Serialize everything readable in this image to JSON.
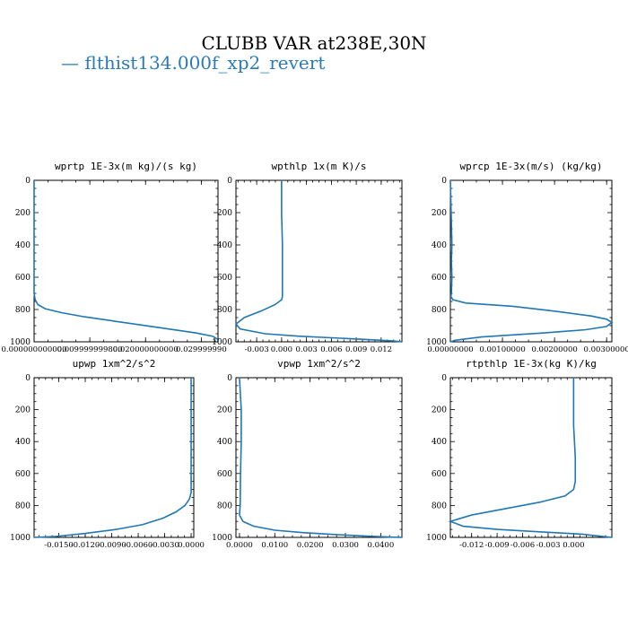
{
  "title": "CLUBB VAR at238E,30N",
  "legend": {
    "label": "— flthist134.000f_xp2_revert",
    "color": "#2a7bb6"
  },
  "line_color": "#1f77b4",
  "chart_data": [
    {
      "type": "line",
      "title": "wprtp  1E-3x(m kg)/(s kg)",
      "xlim": [
        0,
        0.033
      ],
      "ylim": [
        1000,
        0
      ],
      "yticks": [
        "0",
        "200",
        "400",
        "600",
        "800",
        "1000"
      ],
      "xtick_values": [
        0,
        0.01,
        0.02,
        0.03
      ],
      "xtick_labels": [
        "0.000000000000",
        "0.009999999800",
        "0.020000000000",
        "0.029999990"
      ],
      "series": [
        {
          "x": [
            0,
            0,
            0,
            0.0002,
            0.0007,
            0.002,
            0.005,
            0.009,
            0.014,
            0.019,
            0.024,
            0.029,
            0.032,
            0.033,
            0.033
          ],
          "y": [
            0,
            300,
            700,
            740,
            770,
            795,
            820,
            845,
            870,
            895,
            920,
            945,
            965,
            985,
            1000
          ]
        }
      ]
    },
    {
      "type": "line",
      "title": "wpthlp  1x(m K)/s",
      "xlim": [
        -0.0055,
        0.0145
      ],
      "ylim": [
        1000,
        0
      ],
      "yticks": [
        "0",
        "200",
        "400",
        "600",
        "800",
        "1000"
      ],
      "xtick_values": [
        -0.003,
        0,
        0.003,
        0.006,
        0.009,
        0.012
      ],
      "xtick_labels": [
        "-0.003",
        "0.000",
        "0.003",
        "0.006",
        "0.009",
        "0.012"
      ],
      "series": [
        {
          "x": [
            0,
            0,
            0.0001,
            0.0001,
            0.0001,
            0,
            -0.0008,
            -0.0025,
            -0.0045,
            -0.0055,
            -0.005,
            -0.002,
            0.002,
            0.006,
            0.01,
            0.0135,
            0.0145
          ],
          "y": [
            0,
            200,
            400,
            600,
            720,
            740,
            770,
            810,
            850,
            890,
            920,
            950,
            965,
            975,
            985,
            995,
            1000
          ]
        }
      ]
    },
    {
      "type": "line",
      "title": "wprcp  1E-3x(m/s) (kg/kg)",
      "xlim": [
        0,
        0.0031
      ],
      "ylim": [
        1000,
        0
      ],
      "yticks": [
        "0",
        "200",
        "400",
        "600",
        "800",
        "1000"
      ],
      "xtick_values": [
        0,
        0.001,
        0.002,
        0.003
      ],
      "xtick_labels": [
        "0.00000000",
        "0.00100000",
        "0.00200000",
        "0.00300000"
      ],
      "series": [
        {
          "x": [
            0,
            3e-05,
            2e-05,
            3e-05,
            2e-05,
            1e-05,
            5e-05,
            0.0003,
            0.0012,
            0.002,
            0.0027,
            0.003,
            0.0031,
            0.003,
            0.0026,
            0.0018,
            0.0006,
            0.0001,
            0
          ],
          "y": [
            0,
            400,
            500,
            600,
            700,
            720,
            740,
            760,
            780,
            810,
            840,
            860,
            880,
            905,
            925,
            945,
            970,
            990,
            1000
          ]
        }
      ]
    },
    {
      "type": "line",
      "title": "upwp  1xm^2/s^2",
      "xlim": [
        -0.0178,
        0.0003
      ],
      "ylim": [
        1000,
        0
      ],
      "yticks": [
        "0",
        "200",
        "400",
        "600",
        "800",
        "1000"
      ],
      "xtick_values": [
        -0.015,
        -0.012,
        -0.009,
        -0.006,
        -0.003,
        0
      ],
      "xtick_labels": [
        "-0.0150",
        "-0.0120",
        "-0.0090",
        "-0.0060",
        "-0.0030",
        "0.0000"
      ],
      "series": [
        {
          "x": [
            0,
            0,
            0,
            0,
            -0.0002,
            -0.0007,
            -0.0017,
            -0.0032,
            -0.0055,
            -0.0085,
            -0.012,
            -0.0155,
            -0.0178
          ],
          "y": [
            0,
            300,
            600,
            720,
            760,
            800,
            840,
            880,
            920,
            950,
            975,
            995,
            1000
          ]
        }
      ]
    },
    {
      "type": "line",
      "title": "vpwp  1xm^2/s^2",
      "xlim": [
        -0.001,
        0.046
      ],
      "ylim": [
        1000,
        0
      ],
      "yticks": [
        "0",
        "200",
        "400",
        "600",
        "800",
        "1000"
      ],
      "xtick_values": [
        0,
        0.01,
        0.02,
        0.03,
        0.04
      ],
      "xtick_labels": [
        "0.0000",
        "0.0100",
        "0.0200",
        "0.0300",
        "0.0400"
      ],
      "series": [
        {
          "x": [
            0,
            0.0005,
            0.0005,
            0.0003,
            0.0002,
            0,
            0.001,
            0.004,
            0.01,
            0.018,
            0.027,
            0.036,
            0.043,
            0.046
          ],
          "y": [
            0,
            200,
            400,
            600,
            800,
            860,
            900,
            930,
            955,
            970,
            982,
            992,
            998,
            1000
          ]
        }
      ]
    },
    {
      "type": "line",
      "title": "rtpthlp  1E-3x(kg K)/kg",
      "xlim": [
        -0.0145,
        0.0045
      ],
      "ylim": [
        1000,
        0
      ],
      "yticks": [
        "0",
        "200",
        "400",
        "600",
        "800",
        "1000"
      ],
      "xtick_values": [
        -0.012,
        -0.009,
        -0.006,
        -0.003,
        0
      ],
      "xtick_labels": [
        "-0.012",
        "-0.009",
        "-0.006",
        "-0.003",
        "0.000"
      ],
      "series": [
        {
          "x": [
            0,
            0,
            0.0002,
            0.0002,
            0,
            -0.001,
            -0.004,
            -0.008,
            -0.012,
            -0.0145,
            -0.013,
            -0.009,
            -0.004,
            0.001,
            0.003,
            0.0045
          ],
          "y": [
            0,
            300,
            500,
            650,
            700,
            740,
            780,
            820,
            860,
            900,
            930,
            950,
            965,
            980,
            992,
            1000
          ]
        }
      ]
    }
  ]
}
